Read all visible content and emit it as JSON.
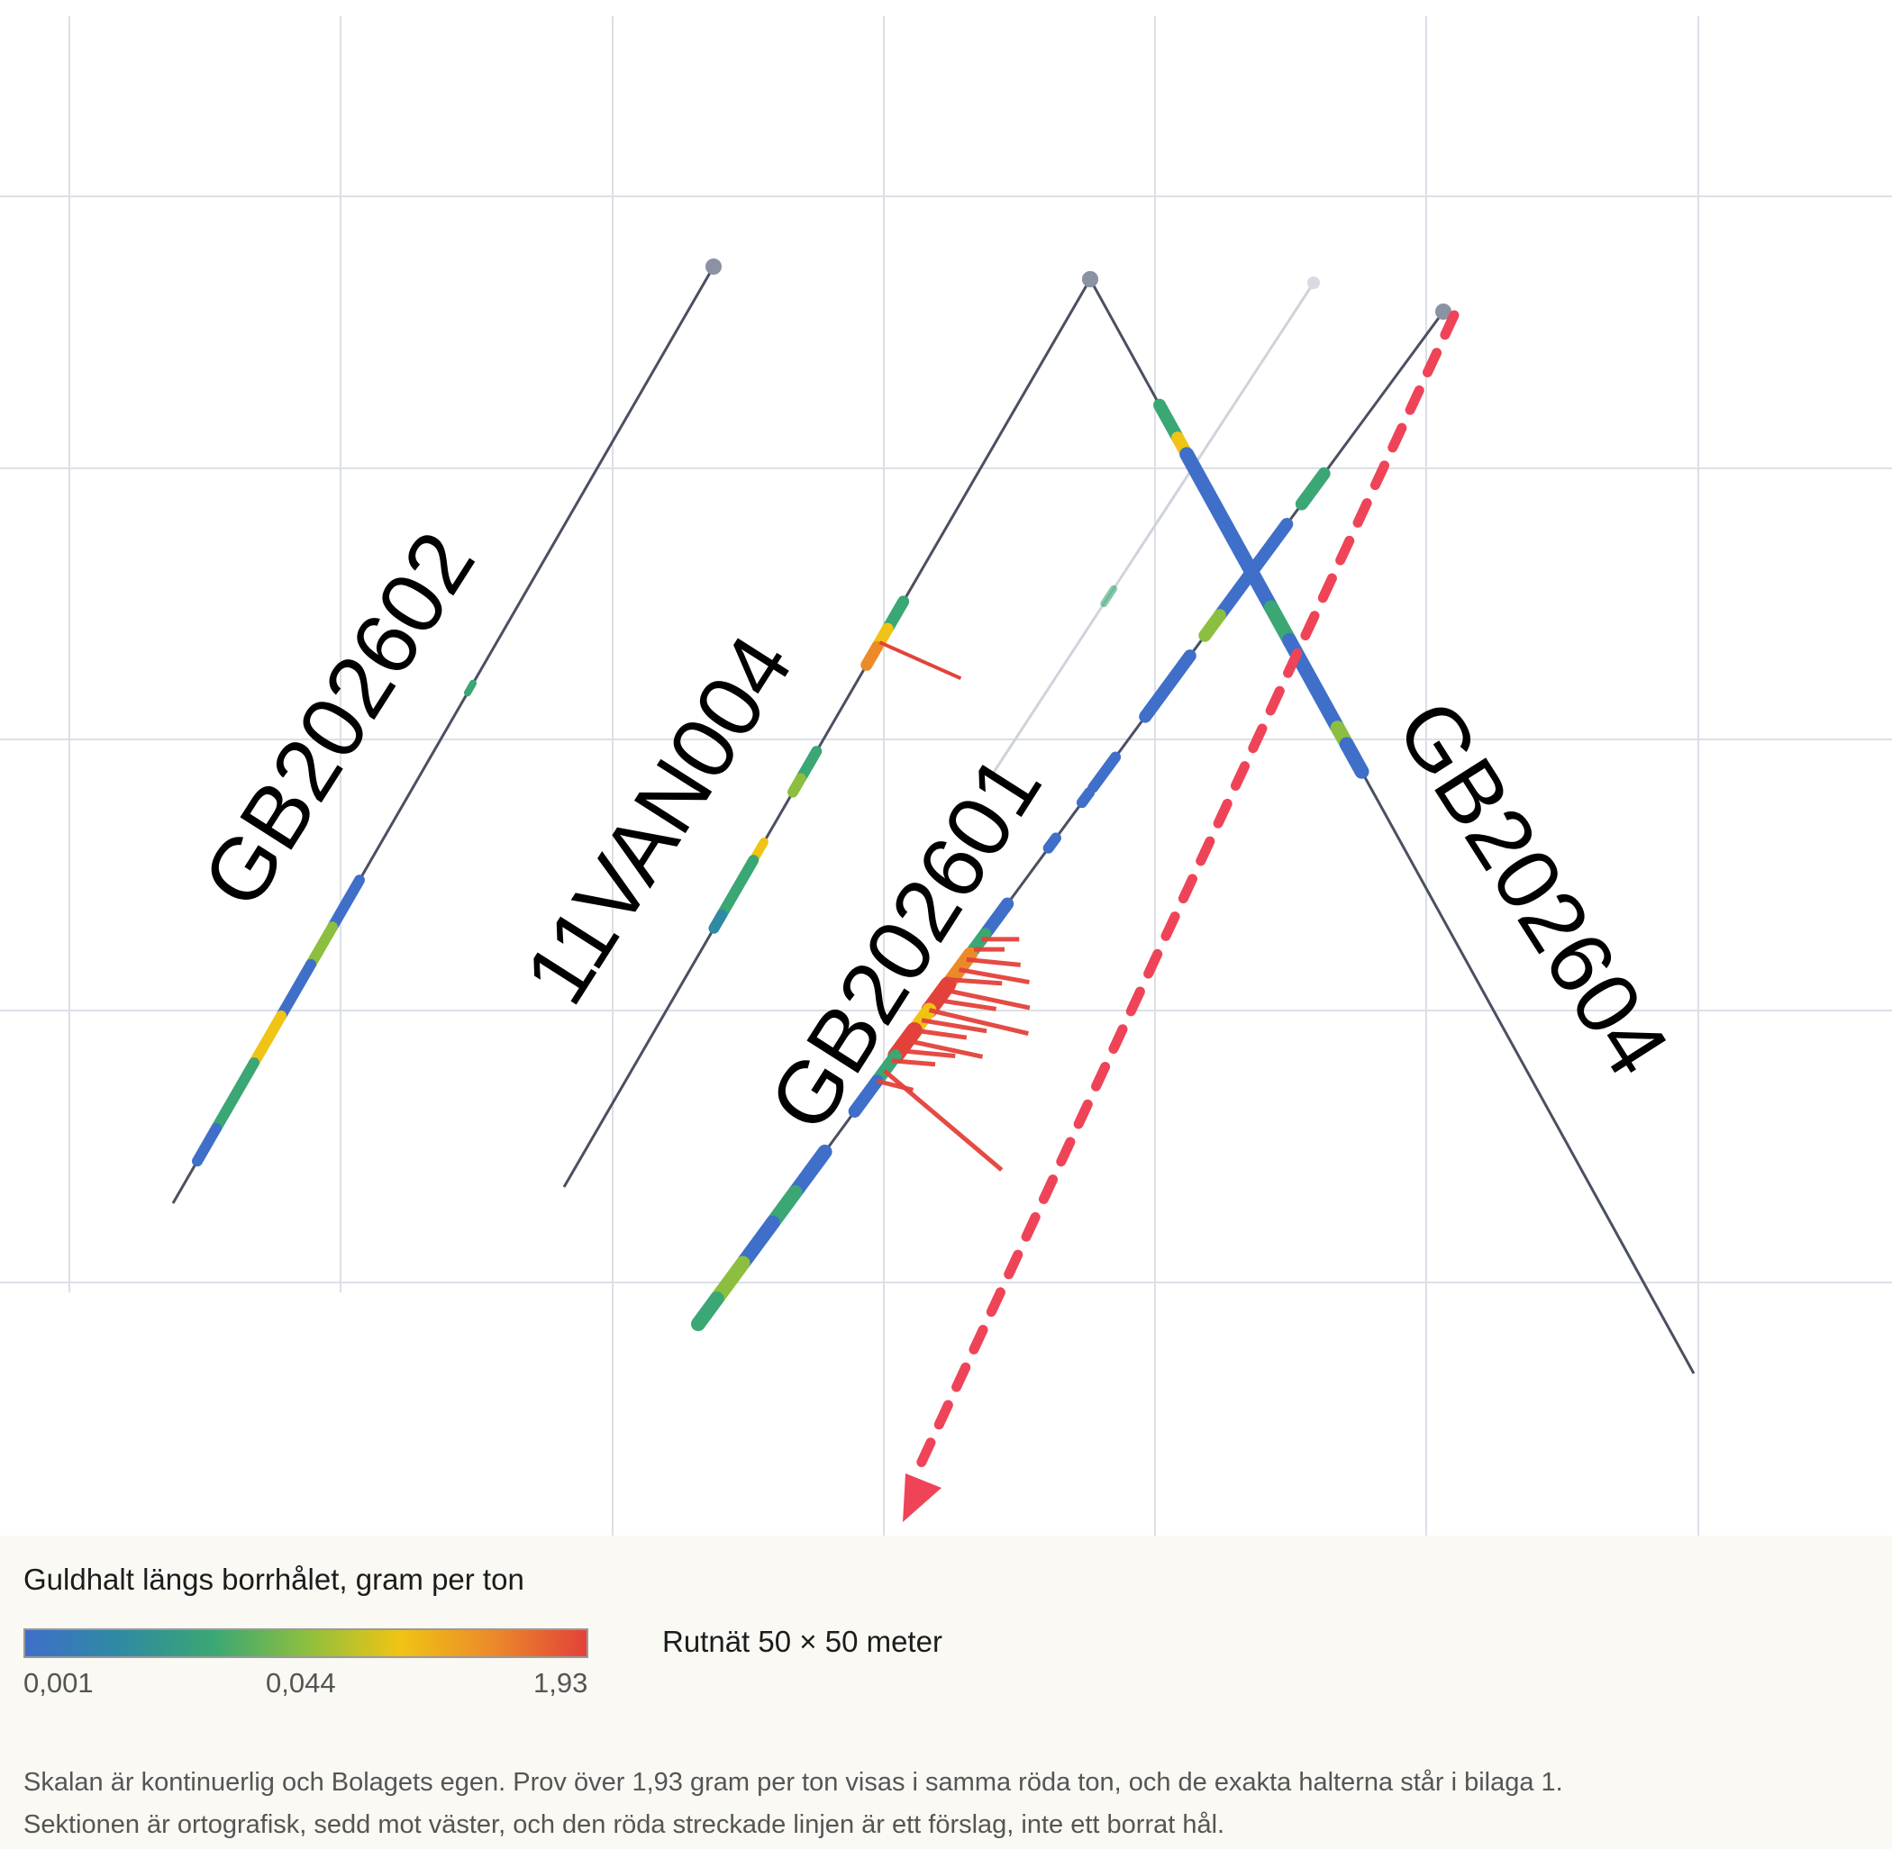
{
  "legend": {
    "title": "Guldhalt längs borrhålet, gram per ton",
    "ticks": {
      "min": "0,001",
      "mid": "0,044",
      "max": "1,93"
    },
    "grid_note": "Rutnät 50 × 50 meter",
    "note": "Skalan är kontinuerlig och Bolagets egen. Prov över 1,93 gram per ton visas i samma röda ton, och de exakta halterna står i bilaga 1. Sektionen är ortografisk, sedd mot väster, och den röda streckade linjen är ett förslag, inte ett borrat hål."
  },
  "colors": {
    "scale": [
      "#3f6fc9",
      "#2f8aa3",
      "#3aa774",
      "#8cbf3f",
      "#f0c414",
      "#ec8a2a",
      "#e3423a"
    ],
    "trace": "#4a5060",
    "grid": "#dcdfe7",
    "proposal": "#ef4458"
  },
  "holes": [
    {
      "id": "GB202602",
      "label": "GB202602"
    },
    {
      "id": "11VAN004",
      "label": "11VAN004"
    },
    {
      "id": "GB202601",
      "label": "GB202601"
    },
    {
      "id": "GB202604",
      "label": "GB202604"
    }
  ]
}
